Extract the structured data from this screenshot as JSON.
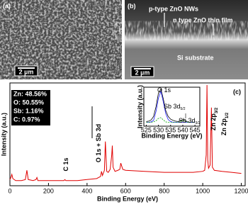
{
  "panels": [
    {
      "label": "(a)",
      "scale_bar": "2 µm"
    },
    {
      "label": "(b)",
      "scale_bar": "2 µm",
      "annotations": [
        "p-type ZnO NWs",
        "n type ZnO thin film",
        "Si substrate"
      ]
    }
  ],
  "chart_data": [
    {
      "type": "line",
      "label": "(c)",
      "xlabel": "Binding Energy (eV)",
      "ylabel": "Intensity (a.u.)",
      "xlim": [
        0,
        1220
      ],
      "ylim": [
        0,
        100
      ],
      "xticks": [
        0,
        200,
        400,
        600,
        800,
        1000,
        1200
      ],
      "composition": [
        "Zn: 48.56%",
        "O: 50.55%",
        "Sb: 1.16%",
        "C: 0.97%"
      ],
      "annotations": [
        {
          "text": "C 1s"
        },
        {
          "text": "O 1s + Sb 3d"
        },
        {
          "text": "Zn 2p",
          "sub": "3/2"
        },
        {
          "text": "Zn 2p",
          "sub": "1/2"
        }
      ],
      "x": [
        0,
        5,
        10,
        15,
        30,
        60,
        80,
        88,
        95,
        120,
        135,
        140,
        145,
        200,
        260,
        280,
        285,
        290,
        350,
        400,
        450,
        470,
        475,
        480,
        490,
        495,
        498,
        502,
        510,
        520,
        528,
        531,
        535,
        545,
        560,
        570,
        575,
        585,
        600,
        700,
        800,
        900,
        950,
        1000,
        1010,
        1018,
        1022,
        1026,
        1030,
        1038,
        1045,
        1050,
        1060,
        1100,
        1150,
        1200
      ],
      "series": [
        {
          "color": "#e00000",
          "values": [
            6,
            8,
            11,
            7,
            5,
            5,
            6,
            15,
            6,
            5,
            6,
            8,
            5,
            5,
            5,
            5,
            6,
            5,
            5,
            6,
            7,
            9,
            14,
            10,
            15,
            43,
            30,
            14,
            13,
            16,
            30,
            39,
            18,
            14,
            15,
            16,
            22,
            16,
            15,
            14,
            13,
            13,
            13,
            14,
            15,
            30,
            98,
            25,
            17,
            20,
            76,
            18,
            15,
            14,
            13,
            12
          ]
        }
      ]
    },
    {
      "type": "line",
      "xlabel": "Binding Energy (eV)",
      "ylabel": "Intensity (a.u.)",
      "xlim": [
        524,
        547
      ],
      "ylim": [
        0,
        100
      ],
      "xticks": [
        525,
        530,
        535,
        540,
        545
      ],
      "annotations": [
        {
          "text": "O 1s"
        },
        {
          "text": "Sb 3d",
          "sub": "5/2"
        },
        {
          "text": "Sb 3d",
          "sub": "3/2"
        }
      ],
      "x": [
        525,
        526,
        527,
        528,
        529,
        530,
        531,
        532,
        533,
        534,
        535,
        536,
        537,
        538,
        539,
        540,
        541,
        542,
        543,
        544,
        545
      ],
      "series": [
        {
          "color": "#000000",
          "dashed": false,
          "values": [
            12,
            13,
            16,
            25,
            50,
            85,
            95,
            70,
            40,
            25,
            18,
            15,
            13,
            12,
            14,
            17,
            14,
            11,
            10,
            10,
            10
          ]
        },
        {
          "color": "#1a1aff",
          "dashed": false,
          "values": [
            10,
            10,
            11,
            15,
            38,
            72,
            90,
            62,
            32,
            17,
            12,
            10,
            10,
            10,
            10,
            10,
            10,
            10,
            10,
            10,
            10
          ]
        },
        {
          "color": "#00a000",
          "dashed": true,
          "values": [
            10,
            10,
            10,
            11,
            14,
            20,
            22,
            16,
            11,
            10,
            10,
            10,
            10,
            10,
            12,
            15,
            12,
            10,
            10,
            10,
            10
          ]
        }
      ]
    }
  ]
}
